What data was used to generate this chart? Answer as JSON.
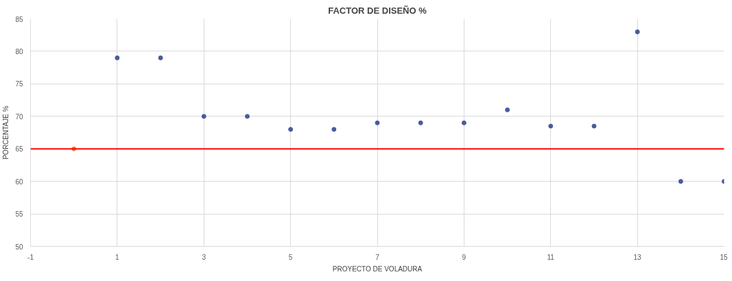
{
  "chart_data": {
    "type": "scatter",
    "title": "FACTOR DE DISEÑO %",
    "xlabel": "PROYECTO DE VOLADURA",
    "ylabel": "PORCENTAJE %",
    "x": [
      1,
      2,
      3,
      4,
      5,
      6,
      7,
      8,
      9,
      10,
      11,
      12,
      13,
      14,
      15
    ],
    "series": [
      {
        "color": "#4a5a9e",
        "values": [
          79,
          79,
          70,
          70,
          68,
          68,
          69,
          69,
          69,
          71,
          68.5,
          68.5,
          83,
          60,
          60
        ]
      },
      {
        "color": "#ed7d31",
        "x": [
          0
        ],
        "values": [
          65
        ]
      }
    ],
    "ref_lines": [
      {
        "axis": "y",
        "value": 65,
        "color": "#ff0000",
        "line_style": "solid"
      }
    ],
    "xlim": [
      -1,
      15
    ],
    "xticks": [
      -1,
      1,
      3,
      5,
      7,
      9,
      11,
      13,
      15
    ],
    "ylim": [
      50,
      85
    ],
    "yticks": [
      50,
      55,
      60,
      65,
      70,
      75,
      80,
      85
    ],
    "grid": true,
    "marker": "circle"
  }
}
